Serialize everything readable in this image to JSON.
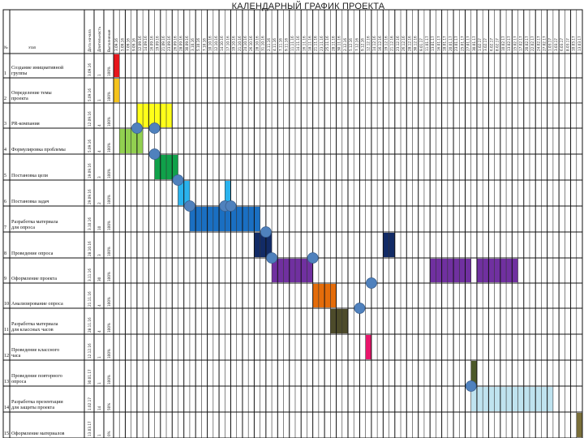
{
  "chart_data": {
    "type": "gantt",
    "title": "КАЛЕНДАРНЫЙ ГРАФИК ПРОЕКТА",
    "column_headers": [
      "№",
      "этап"
    ],
    "meta_headers": [
      "Дата начала",
      "Длительность",
      "Выполнение"
    ],
    "date_headers": [
      "3.09.16",
      "5.09.16",
      "7.09.16",
      "9.09.16",
      "12.09.16",
      "14.09.16",
      "16.09.16",
      "19.09.16",
      "21.09.16",
      "23.09.16",
      "26.09.16",
      "28.09.16",
      "30.09.16",
      "3.10.16",
      "5.10.16",
      "7.10.16",
      "10.10.16",
      "12.10.16",
      "14.10.16",
      "17.10.16",
      "19.10.16",
      "21.10.16",
      "24.10.16",
      "26.10.16",
      "28.10.16",
      "31.10.16",
      "2.11.16",
      "4.11.16",
      "7.11.16",
      "9.11.16",
      "11.11.16",
      "14.11.16",
      "16.11.16",
      "18.11.16",
      "21.11.16",
      "23.11.16",
      "25.11.16",
      "28.11.16",
      "30.11.16",
      "2.12.16",
      "5.12.16",
      "7.12.16",
      "9.12.16",
      "12.12.16",
      "14.12.16",
      "16.12.16",
      "19.12.16",
      "21.12.16",
      "23.12.16",
      "26.12.16",
      "28.12.16",
      "30.12.16",
      "9.01.17",
      "11.01.17",
      "13.01.17",
      "16.01.17",
      "18.01.17",
      "20.01.17",
      "23.01.17",
      "25.01.17",
      "27.01.17",
      "30.01.17",
      "1.02.17",
      "3.02.17",
      "6.02.17",
      "8.02.17",
      "10.02.17",
      "13.02.17",
      "15.02.17",
      "17.02.17",
      "20.02.17",
      "22.02.17",
      "24.02.17",
      "27.02.17",
      "1.03.17",
      "3.03.17",
      "6.03.17",
      "8.03.17",
      "10.03.17",
      "13.03.17"
    ],
    "tasks": [
      {
        "num": "1",
        "name": "Создание инициативной группы",
        "start": "3.09.16",
        "duration": "1",
        "done": "100%",
        "color": "#e8161c",
        "col_start": 0,
        "col_span": 1
      },
      {
        "num": "2",
        "name": "Определение темы проекта",
        "start": "5.09.16",
        "duration": "1",
        "done": "100%",
        "color": "#f5c31c",
        "col_start": 0,
        "col_span": 1
      },
      {
        "num": "3",
        "name": "PR-компания",
        "start": "12.09.16",
        "duration": "4",
        "done": "100%",
        "color": "#ffff19",
        "col_start": 4,
        "col_span": 6
      },
      {
        "num": "4",
        "name": "Формулировка проблемы",
        "start": "5.09.16",
        "duration": "4",
        "done": "100%",
        "color": "#92d050",
        "col_start": 1,
        "col_span": 4
      },
      {
        "num": "5",
        "name": "Постановка цели",
        "start": "19.09.16",
        "duration": "3",
        "done": "100%",
        "color": "#10a14a",
        "col_start": 7,
        "col_span": 4
      },
      {
        "num": "6",
        "name": "Постановка задач",
        "start": "29.09.16",
        "duration": "2",
        "done": "100%",
        "color": "#2ab3ee",
        "col_start": 11,
        "col_span": 2
      },
      {
        "num": "7",
        "name": "Разработка материала для опроса",
        "start": "3.10.16",
        "duration": "10",
        "done": "100%",
        "color": "#1a6fc2",
        "col_start": 13,
        "col_span": 12
      },
      {
        "num": "8",
        "name": "Проведение опроса",
        "start": "28.10.16",
        "duration": "3",
        "done": "100%",
        "color": "#122b66",
        "col_start": 24,
        "col_span": 3
      },
      {
        "num": "9",
        "name": "Оформление проекта",
        "start": "3.11.16",
        "duration": "30",
        "done": "100%",
        "color": "#7030a0",
        "col_start": 27,
        "col_span": 7
      },
      {
        "num": "10",
        "name": "Анализирование опроса",
        "start": "21.11.16",
        "duration": "4",
        "done": "100%",
        "color": "#e46c0a",
        "col_start": 34,
        "col_span": 4
      },
      {
        "num": "11",
        "name": "Разработка материала для классных часов",
        "start": "28.11.16",
        "duration": "4",
        "done": "100%",
        "color": "#4d4b2a",
        "col_start": 37,
        "col_span": 3
      },
      {
        "num": "12",
        "name": "Проведение классного часа",
        "start": "12.12.16",
        "duration": "1",
        "done": "100%",
        "color": "#e8166b",
        "col_start": 43,
        "col_span": 1
      },
      {
        "num": "13",
        "name": "Проведение повторного опроса",
        "start": "30.01.17",
        "duration": "1",
        "done": "100%",
        "color": "#4d5a2a",
        "col_start": 61,
        "col_span": 1
      },
      {
        "num": "14",
        "name": "Разработка презентации для защиты проекта",
        "start": "1.02.17",
        "duration": "14",
        "done": "50%",
        "color": "#bfe3ef",
        "col_start": 61,
        "col_span": 14
      },
      {
        "num": "15",
        "name": "Оформление материалов",
        "start": "13.03.17",
        "duration": "1",
        "done": "0%",
        "color": "#7a6f3a",
        "col_start": 79,
        "col_span": 1
      }
    ],
    "extra_bars": [
      {
        "task": "6",
        "color": "#2ab3ee",
        "col_start": 19,
        "col_span": 1,
        "note": "second block in row 6"
      },
      {
        "task": "8",
        "color": "#122b66",
        "col_start": 46,
        "col_span": 2,
        "note": "second block"
      },
      {
        "task": "9",
        "color": "#7030a0",
        "col_start": 54,
        "col_span": 7
      },
      {
        "task": "9",
        "color": "#7030a0",
        "col_start": 62,
        "col_span": 7
      }
    ],
    "milestones": [
      {
        "label": "m1",
        "col": 4,
        "row": 3
      },
      {
        "label": "m2",
        "col": 7,
        "row": 3
      },
      {
        "label": "m3",
        "col": 7,
        "row": 4
      },
      {
        "label": "m4",
        "col": 11,
        "row": 5
      },
      {
        "label": "m5",
        "col": 13,
        "row": 6
      },
      {
        "label": "m6",
        "col": 19,
        "row": 6
      },
      {
        "label": "m7",
        "col": 20,
        "row": 6
      },
      {
        "label": "m8",
        "col": 26,
        "row": 7
      },
      {
        "label": "m9",
        "col": 27,
        "row": 8
      },
      {
        "label": "m10",
        "col": 34,
        "row": 8
      },
      {
        "label": "m11",
        "col": 44,
        "row": 9
      },
      {
        "label": "m12",
        "col": 42,
        "row": 10
      },
      {
        "label": "m13",
        "col": 61,
        "row": 13
      }
    ]
  }
}
